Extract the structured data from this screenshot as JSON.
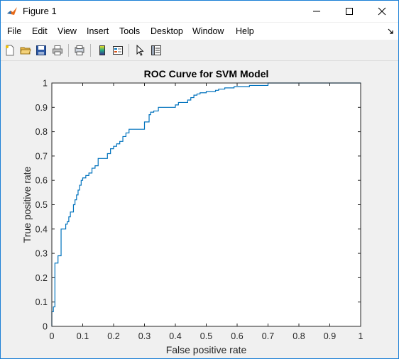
{
  "window": {
    "title": "Figure 1"
  },
  "menu": [
    "File",
    "Edit",
    "View",
    "Insert",
    "Tools",
    "Desktop",
    "Window",
    "Help"
  ],
  "toolbar": {
    "icons": [
      "new-figure-icon",
      "open-file-icon",
      "save-icon",
      "print-icon",
      "print-preview-icon",
      "insert-colorbar-icon",
      "insert-legend-icon",
      "edit-plot-pointer-icon",
      "property-inspector-icon"
    ]
  },
  "colors": {
    "line": "#0072bd",
    "axes_bg": "#ffffff",
    "figure_bg": "#f0f0f0"
  },
  "chart_data": {
    "type": "line",
    "title": "ROC Curve for SVM Model",
    "xlabel": "False positive rate",
    "ylabel": "True positive rate",
    "xlim": [
      0,
      1
    ],
    "ylim": [
      0,
      1
    ],
    "xticks": [
      0,
      0.1,
      0.2,
      0.3,
      0.4,
      0.5,
      0.6,
      0.7,
      0.8,
      0.9,
      1
    ],
    "yticks": [
      0,
      0.1,
      0.2,
      0.3,
      0.4,
      0.5,
      0.6,
      0.7,
      0.8,
      0.9,
      1
    ],
    "xtick_labels": [
      "0",
      "0.1",
      "0.2",
      "0.3",
      "0.4",
      "0.5",
      "0.6",
      "0.7",
      "0.8",
      "0.9",
      "1"
    ],
    "ytick_labels": [
      "0",
      "0.1",
      "0.2",
      "0.3",
      "0.4",
      "0.5",
      "0.6",
      "0.7",
      "0.8",
      "0.9",
      "1"
    ],
    "grid": false,
    "series": [
      {
        "x": [
          0,
          0,
          0.005,
          0.005,
          0.01,
          0.01,
          0.02,
          0.02,
          0.03,
          0.03,
          0.045,
          0.045,
          0.05,
          0.05,
          0.055,
          0.055,
          0.06,
          0.06,
          0.07,
          0.07,
          0.075,
          0.075,
          0.08,
          0.08,
          0.085,
          0.085,
          0.09,
          0.09,
          0.095,
          0.095,
          0.1,
          0.1,
          0.11,
          0.11,
          0.12,
          0.12,
          0.13,
          0.13,
          0.14,
          0.14,
          0.15,
          0.15,
          0.18,
          0.18,
          0.19,
          0.19,
          0.2,
          0.2,
          0.21,
          0.21,
          0.22,
          0.22,
          0.23,
          0.23,
          0.24,
          0.24,
          0.25,
          0.25,
          0.3,
          0.3,
          0.315,
          0.315,
          0.32,
          0.32,
          0.33,
          0.33,
          0.345,
          0.345,
          0.4,
          0.4,
          0.41,
          0.41,
          0.44,
          0.44,
          0.45,
          0.45,
          0.46,
          0.46,
          0.47,
          0.47,
          0.48,
          0.48,
          0.5,
          0.5,
          0.53,
          0.53,
          0.54,
          0.54,
          0.56,
          0.56,
          0.59,
          0.59,
          0.64,
          0.64,
          0.7,
          0.7,
          0.71,
          0.71,
          1
        ],
        "y": [
          0,
          0.06,
          0.06,
          0.08,
          0.08,
          0.26,
          0.26,
          0.29,
          0.29,
          0.4,
          0.4,
          0.42,
          0.42,
          0.43,
          0.43,
          0.45,
          0.45,
          0.47,
          0.47,
          0.5,
          0.5,
          0.52,
          0.52,
          0.54,
          0.54,
          0.56,
          0.56,
          0.58,
          0.58,
          0.6,
          0.6,
          0.61,
          0.61,
          0.62,
          0.62,
          0.63,
          0.63,
          0.65,
          0.65,
          0.66,
          0.66,
          0.69,
          0.69,
          0.71,
          0.71,
          0.73,
          0.73,
          0.74,
          0.74,
          0.75,
          0.75,
          0.76,
          0.76,
          0.78,
          0.78,
          0.795,
          0.795,
          0.81,
          0.81,
          0.84,
          0.84,
          0.87,
          0.87,
          0.88,
          0.88,
          0.885,
          0.885,
          0.9,
          0.9,
          0.91,
          0.91,
          0.92,
          0.92,
          0.93,
          0.93,
          0.94,
          0.94,
          0.95,
          0.95,
          0.955,
          0.955,
          0.96,
          0.96,
          0.965,
          0.965,
          0.97,
          0.97,
          0.975,
          0.975,
          0.98,
          0.98,
          0.985,
          0.985,
          0.99,
          0.99,
          1,
          1,
          1,
          1
        ]
      }
    ]
  }
}
